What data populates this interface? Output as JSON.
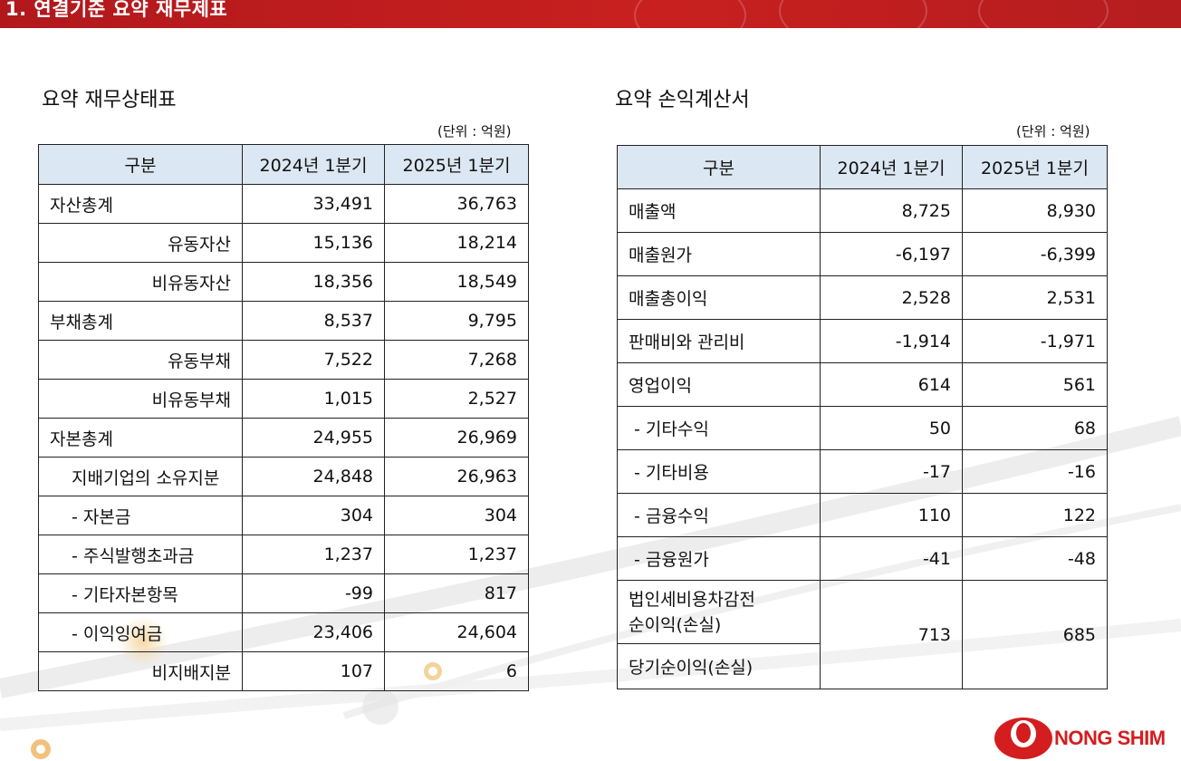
{
  "header": {
    "title": "1. 연결기준 요약 재무제표"
  },
  "balance_sheet": {
    "title": "요약 재무상태표",
    "unit": "(단위 : 억원)",
    "headers": [
      "구분",
      "2024년 1분기",
      "2025년 1분기"
    ],
    "rows": [
      {
        "label": "자산총계",
        "v1": "33,491",
        "v2": "36,763"
      },
      {
        "label": "유동자산",
        "v1": "15,136",
        "v2": "18,214"
      },
      {
        "label": "비유동자산",
        "v1": "18,356",
        "v2": "18,549"
      },
      {
        "label": "부채총계",
        "v1": "8,537",
        "v2": "9,795"
      },
      {
        "label": "유동부채",
        "v1": "7,522",
        "v2": "7,268"
      },
      {
        "label": "비유동부채",
        "v1": "1,015",
        "v2": "2,527"
      },
      {
        "label": "자본총계",
        "v1": "24,955",
        "v2": "26,969"
      },
      {
        "label": "지배기업의 소유지분",
        "v1": "24,848",
        "v2": "26,963"
      },
      {
        "label": "- 자본금",
        "v1": "304",
        "v2": "304"
      },
      {
        "label": "- 주식발행초과금",
        "v1": "1,237",
        "v2": "1,237"
      },
      {
        "label": "- 기타자본항목",
        "v1": "-99",
        "v2": "817"
      },
      {
        "label": "- 이익잉여금",
        "v1": "23,406",
        "v2": "24,604"
      },
      {
        "label": "비지배지분",
        "v1": "107",
        "v2": "6"
      }
    ]
  },
  "income_statement": {
    "title": "요약 손익계산서",
    "unit": "(단위 : 억원)",
    "headers": [
      "구분",
      "2024년 1분기",
      "2025년 1분기"
    ],
    "rows": [
      {
        "label": "매출액",
        "v1": "8,725",
        "v2": "8,930"
      },
      {
        "label": "매출원가",
        "v1": "-6,197",
        "v2": "-6,399"
      },
      {
        "label": "매출총이익",
        "v1": "2,528",
        "v2": "2,531"
      },
      {
        "label": "판매비와 관리비",
        "v1": "-1,914",
        "v2": "-1,971"
      },
      {
        "label": "영업이익",
        "v1": "614",
        "v2": "561"
      },
      {
        "label": "- 기타수익",
        "v1": "50",
        "v2": "68"
      },
      {
        "label": "- 기타비용",
        "v1": "-17",
        "v2": "-16"
      },
      {
        "label": "- 금융수익",
        "v1": "110",
        "v2": "122"
      },
      {
        "label": "- 금융원가",
        "v1": "-41",
        "v2": "-48"
      }
    ],
    "merged": {
      "label1": "법인세비용차감전",
      "label2": "순이익(손실)",
      "label3": "당기순이익(손실)",
      "v1": "713",
      "v2": "685"
    }
  },
  "logo": {
    "text": "NONG SHIM"
  }
}
